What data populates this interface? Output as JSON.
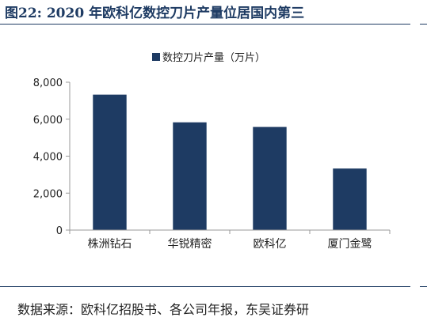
{
  "figure": {
    "title": "图22:  2020 年欧科亿数控刀片产量位居国内第三",
    "source": "数据来源：欧科亿招股书、各公司年报，东吴证券研"
  },
  "colors": {
    "bar": "#1e3b63",
    "rule": "#1e3b63",
    "axis": "#999999"
  },
  "chart_data": {
    "type": "bar",
    "categories": [
      "株洲钻石",
      "华锐精密",
      "欧科亿",
      "厦门金鹭"
    ],
    "series": [
      {
        "name": "数控刀片产量（万片）",
        "values": [
          7330,
          5830,
          5580,
          3330
        ]
      }
    ],
    "ylim": [
      0,
      8000
    ],
    "yticks": [
      0,
      2000,
      4000,
      6000,
      8000
    ],
    "ytick_labels": [
      "0",
      "2,000",
      "4,000",
      "6,000",
      "8,000"
    ],
    "xlabel": "",
    "ylabel": "",
    "grid": false,
    "legend_position": "top-center"
  }
}
